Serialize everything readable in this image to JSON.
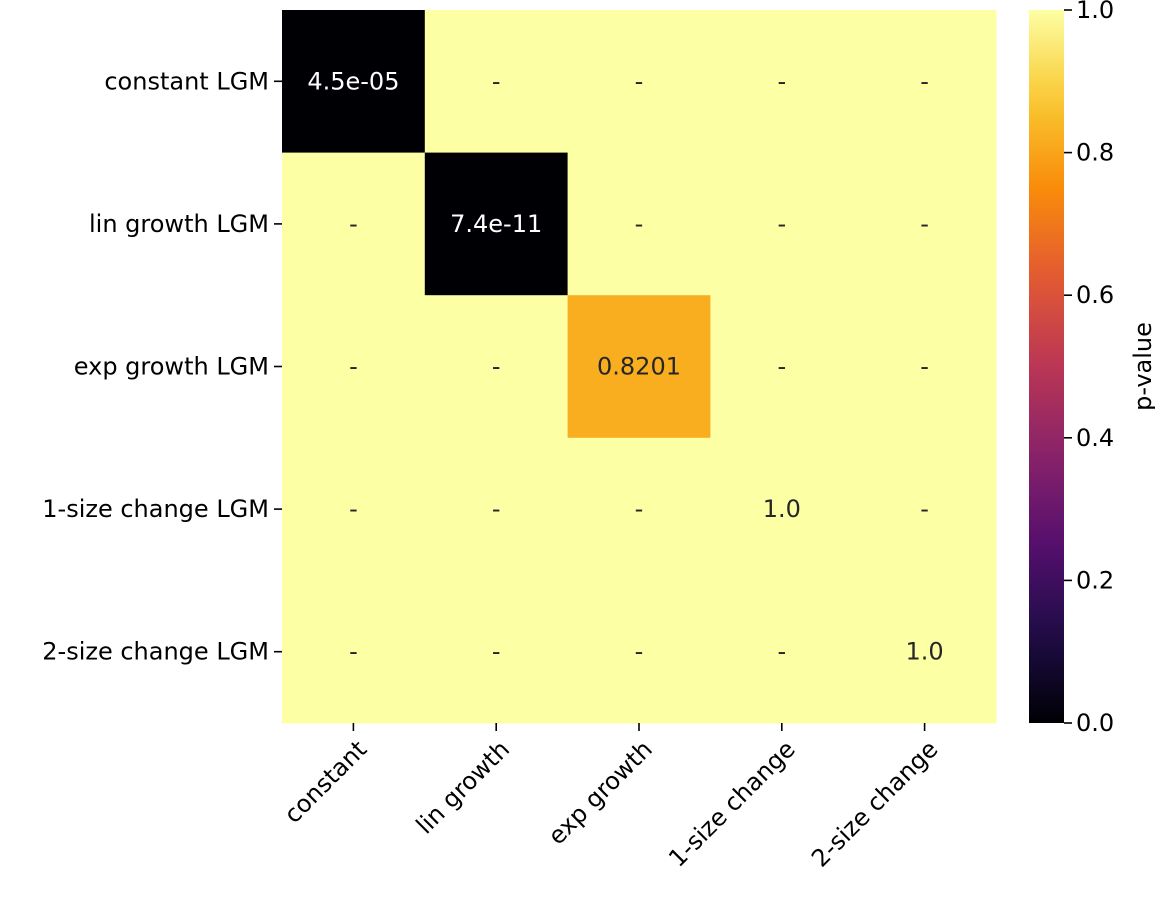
{
  "chart_data": {
    "type": "heatmap",
    "title": "",
    "xlabel": "",
    "ylabel": "",
    "x_categories": [
      "constant",
      "lin growth",
      "exp growth",
      "1-size change",
      "2-size change"
    ],
    "y_categories": [
      "constant LGM",
      "lin growth LGM",
      "exp growth LGM",
      "1-size change LGM",
      "2-size change LGM"
    ],
    "values": [
      [
        4.5e-05,
        null,
        null,
        null,
        null
      ],
      [
        null,
        7.4e-11,
        null,
        null,
        null
      ],
      [
        null,
        null,
        0.8201,
        null,
        null
      ],
      [
        null,
        null,
        null,
        1.0,
        null
      ],
      [
        null,
        null,
        null,
        null,
        1.0
      ]
    ],
    "annotations": [
      [
        "4.5e-05",
        "-",
        "-",
        "-",
        "-"
      ],
      [
        "-",
        "7.4e-11",
        "-",
        "-",
        "-"
      ],
      [
        "-",
        "-",
        "0.8201",
        "-",
        "-"
      ],
      [
        "-",
        "-",
        "-",
        "1.0",
        "-"
      ],
      [
        "-",
        "-",
        "-",
        "-",
        "1.0"
      ]
    ],
    "missing_fill_value": 1.0,
    "colormap": "inferno",
    "colorbar": {
      "label": "p-value",
      "range": [
        0,
        1
      ],
      "ticks": [
        0.0,
        0.2,
        0.4,
        0.6,
        0.8,
        1.0
      ],
      "tick_labels": [
        "0.0",
        "0.2",
        "0.4",
        "0.6",
        "0.8",
        "1.0"
      ]
    },
    "x_tick_rotation_deg": 45
  },
  "colors": {
    "annotation_light": "#ffffff",
    "annotation_dark": "#262626",
    "tick_color": "#000000"
  }
}
